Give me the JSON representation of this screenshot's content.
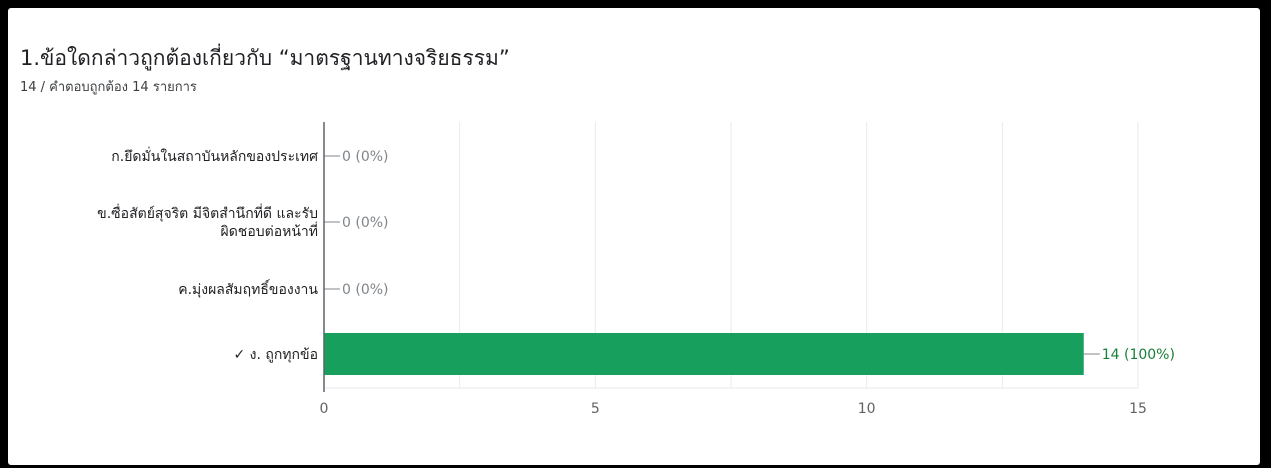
{
  "question": {
    "title": "1.ข้อใดกล่าวถูกต้องเกี่ยวกับ “มาตรฐานทางจริยธรรม”",
    "subtitle": "14 / คำตอบถูกต้อง 14 รายการ"
  },
  "chart_data": {
    "type": "bar",
    "orientation": "horizontal",
    "categories": [
      [
        "ก.ยึดมั่นในสถาบันหลักของประเทศ"
      ],
      [
        "ข.ซื่อสัตย์สุจริต มีจิตสำนึกที่ดี และรับ",
        "ผิดชอบต่อหน้าที่"
      ],
      [
        "ค.มุ่งผลสัมฤทธิ์ของงาน"
      ],
      [
        "✓ ง. ถูกทุกข้อ"
      ]
    ],
    "values": [
      0,
      0,
      0,
      14
    ],
    "value_labels": [
      "0 (0%)",
      "0 (0%)",
      "0 (0%)",
      "14 (100%)"
    ],
    "correct_index": 3,
    "xlim": [
      0,
      15
    ],
    "xticks": [
      "0",
      "5",
      "10",
      "15"
    ],
    "grid": true,
    "colors": {
      "bar": "#17a05d",
      "zero_label": "#80868b",
      "correct_label": "#188038",
      "axis": "#5f6368",
      "grid": "#e8eaed"
    }
  }
}
